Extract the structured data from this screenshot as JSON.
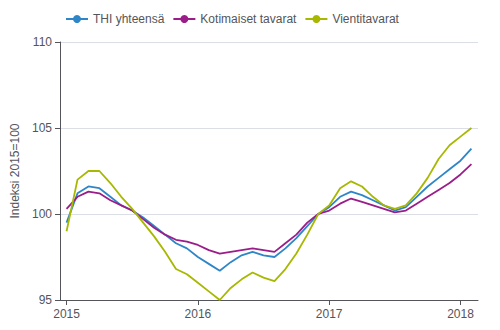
{
  "chart_data": {
    "type": "line",
    "ylabel": "Indeksi 2015=100",
    "x": [
      2015,
      2015.0833333333333,
      2015.1666666666667,
      2015.25,
      2015.3333333333333,
      2015.4166666666667,
      2015.5,
      2015.5833333333333,
      2015.6666666666667,
      2015.75,
      2015.8333333333333,
      2015.9166666666667,
      2016,
      2016.0833333333333,
      2016.1666666666667,
      2016.25,
      2016.3333333333333,
      2016.4166666666667,
      2016.5,
      2016.5833333333333,
      2016.6666666666667,
      2016.75,
      2016.8333333333333,
      2016.9166666666667,
      2017,
      2017.0833333333333,
      2017.1666666666667,
      2017.25,
      2017.3333333333333,
      2017.4166666666667,
      2017.5,
      2017.5833333333333,
      2017.6666666666667,
      2017.75,
      2017.8333333333333,
      2017.9166666666667,
      2018,
      2018.0833333333333
    ],
    "series": [
      {
        "name": "THI yhteensä",
        "color": "#2e86c8",
        "values": [
          99.5,
          101.2,
          101.6,
          101.5,
          101.0,
          100.5,
          100.2,
          99.8,
          99.3,
          98.8,
          98.3,
          98.0,
          97.5,
          97.1,
          96.7,
          97.2,
          97.6,
          97.8,
          97.6,
          97.5,
          98.0,
          98.6,
          99.3,
          100.0,
          100.4,
          101.0,
          101.3,
          101.1,
          100.8,
          100.5,
          100.2,
          100.4,
          101.0,
          101.6,
          102.1,
          102.6,
          103.1,
          103.8
        ]
      },
      {
        "name": "Kotimaiset tavarat",
        "color": "#9b1d8a",
        "values": [
          100.3,
          101.0,
          101.3,
          101.2,
          100.8,
          100.5,
          100.2,
          99.7,
          99.2,
          98.8,
          98.5,
          98.4,
          98.2,
          97.9,
          97.7,
          97.8,
          97.9,
          98.0,
          97.9,
          97.8,
          98.3,
          98.8,
          99.5,
          100.0,
          100.2,
          100.6,
          100.9,
          100.7,
          100.5,
          100.3,
          100.1,
          100.2,
          100.6,
          101.0,
          101.4,
          101.8,
          102.3,
          102.9
        ]
      },
      {
        "name": "Vientitavarat",
        "color": "#a8b800",
        "values": [
          99.0,
          102.0,
          102.5,
          102.5,
          101.8,
          101.0,
          100.3,
          99.5,
          98.7,
          97.8,
          96.8,
          96.5,
          96.0,
          95.5,
          95.0,
          95.7,
          96.2,
          96.6,
          96.3,
          96.1,
          96.8,
          97.7,
          98.8,
          100.0,
          100.5,
          101.5,
          101.9,
          101.6,
          101.0,
          100.5,
          100.3,
          100.5,
          101.2,
          102.1,
          103.2,
          104.0,
          104.5,
          105.0
        ]
      }
    ],
    "xlim": [
      2014.95,
      2018.1333333333332
    ],
    "xticks": [
      2015,
      2016,
      2017,
      2018
    ],
    "ylim": [
      95,
      110
    ],
    "yticks": [
      95,
      100,
      105,
      110
    ],
    "grid": true,
    "legend": "upper left"
  }
}
